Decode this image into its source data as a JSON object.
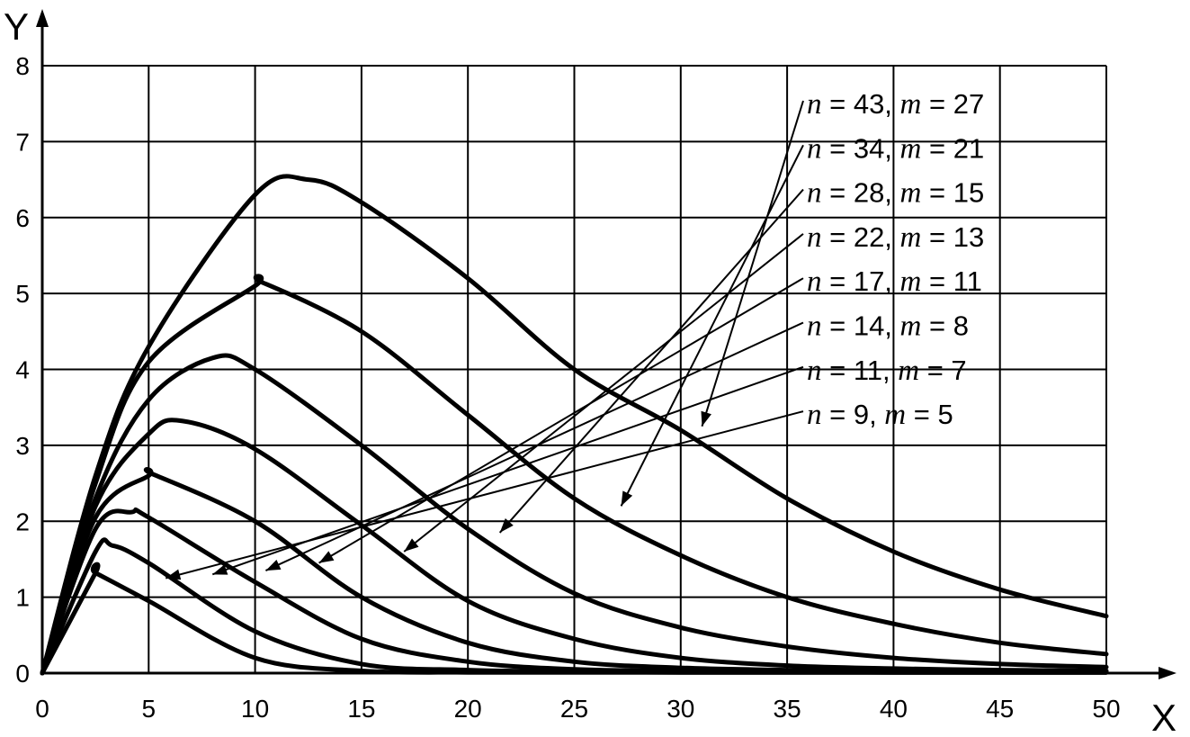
{
  "chart_data": {
    "type": "line",
    "xlabel": "X",
    "ylabel": "Y",
    "xlim": [
      0,
      50
    ],
    "ylim": [
      0,
      8
    ],
    "xticks": [
      0,
      5,
      10,
      15,
      20,
      25,
      30,
      35,
      40,
      45,
      50
    ],
    "yticks": [
      0,
      1,
      2,
      3,
      4,
      5,
      6,
      7,
      8
    ],
    "grid": true,
    "x": [
      0,
      2.5,
      5,
      10,
      15,
      20,
      25,
      30,
      35,
      40,
      45,
      50
    ],
    "series": [
      {
        "name": "n = 43, m = 27",
        "n_label": "n",
        "n_value": "43",
        "m_label": "m",
        "m_value": "27",
        "peak": [
          12.5,
          6.5
        ],
        "values": [
          0,
          2.6,
          4.3,
          6.3,
          6.2,
          5.2,
          4.0,
          3.2,
          2.3,
          1.6,
          1.1,
          0.75
        ]
      },
      {
        "name": "n = 34, m = 21",
        "n_label": "n",
        "n_value": "34",
        "m_label": "m",
        "m_value": "21",
        "peak": [
          10.3,
          5.15
        ],
        "values": [
          0,
          2.5,
          4.1,
          5.1,
          4.5,
          3.4,
          2.3,
          1.55,
          1.0,
          0.65,
          0.4,
          0.25
        ]
      },
      {
        "name": "n = 28, m = 15",
        "n_label": "n",
        "n_value": "28",
        "m_label": "m",
        "m_value": "15",
        "peak": [
          8.0,
          4.15
        ],
        "values": [
          0,
          2.3,
          3.6,
          4.0,
          3.0,
          1.9,
          1.05,
          0.6,
          0.35,
          0.2,
          0.12,
          0.08
        ]
      },
      {
        "name": "n = 22, m = 13",
        "n_label": "n",
        "n_value": "22",
        "m_label": "m",
        "m_value": "13",
        "peak": [
          6.6,
          3.32
        ],
        "values": [
          0,
          2.2,
          3.15,
          2.95,
          1.95,
          0.95,
          0.45,
          0.2,
          0.1,
          0.06,
          0.04,
          0.03
        ]
      },
      {
        "name": "n = 17, m = 11",
        "n_label": "n",
        "n_value": "17",
        "m_label": "m",
        "m_value": "11",
        "peak": [
          5.2,
          2.62
        ],
        "values": [
          0,
          2.05,
          2.6,
          2.0,
          1.0,
          0.4,
          0.15,
          0.07,
          0.04,
          0.03,
          0.02,
          0.02
        ]
      },
      {
        "name": "n = 14, m = 8",
        "n_label": "n",
        "n_value": "14",
        "m_label": "m",
        "m_value": "8",
        "peak": [
          4.2,
          2.12
        ],
        "values": [
          0,
          1.9,
          2.05,
          1.2,
          0.45,
          0.15,
          0.05,
          0.03,
          0.02,
          0.01,
          0.01,
          0.01
        ]
      },
      {
        "name": "n = 11, m = 7",
        "n_label": "n",
        "n_value": "11",
        "m_label": "m",
        "m_value": "7",
        "peak": [
          3.3,
          1.68
        ],
        "values": [
          0,
          1.6,
          1.45,
          0.55,
          0.12,
          0.04,
          0.02,
          0.01,
          0.01,
          0.01,
          0.01,
          0.01
        ]
      },
      {
        "name": "n = 9, m = 5",
        "n_label": "n",
        "n_value": "9",
        "m_label": "m",
        "m_value": "5",
        "peak": [
          2.5,
          1.32
        ],
        "values": [
          0,
          1.32,
          0.95,
          0.2,
          0.03,
          0.01,
          0.01,
          0.01,
          0.01,
          0.01,
          0.01,
          0.01
        ]
      }
    ]
  }
}
